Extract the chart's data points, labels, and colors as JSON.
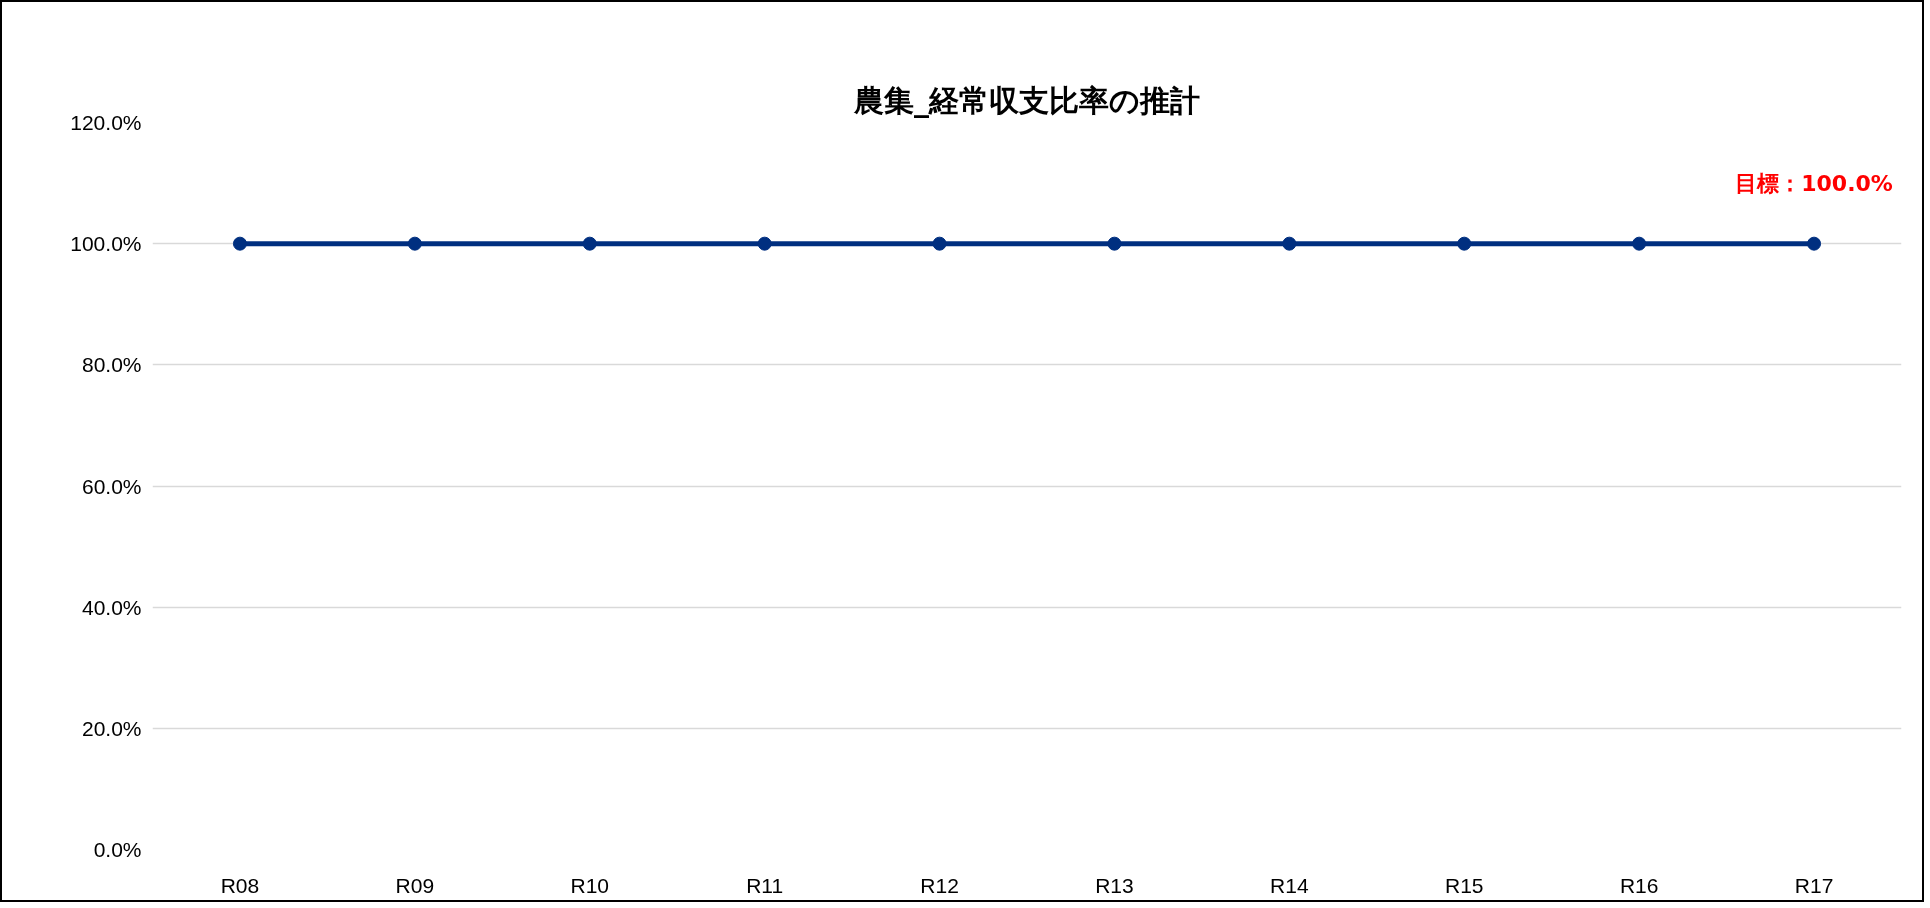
{
  "chart_data": {
    "type": "line",
    "title": "農集_経常収支比率の推計",
    "categories": [
      "R08",
      "R09",
      "R10",
      "R11",
      "R12",
      "R13",
      "R14",
      "R15",
      "R16",
      "R17"
    ],
    "series": [
      {
        "color": "#002f80",
        "values": [
          100,
          100,
          100,
          100,
          100,
          100,
          100,
          100,
          100,
          100
        ]
      }
    ],
    "ylim": [
      0,
      120
    ],
    "yticks": [
      {
        "value": 0,
        "label": "0.0%"
      },
      {
        "value": 20,
        "label": "20.0%"
      },
      {
        "value": 40,
        "label": "40.0%"
      },
      {
        "value": 60,
        "label": "60.0%"
      },
      {
        "value": 80,
        "label": "80.0%"
      },
      {
        "value": 100,
        "label": "100.0%"
      },
      {
        "value": 120,
        "label": "120.0%"
      }
    ],
    "grid": "y",
    "marker": "circle",
    "line_style": "solid",
    "annotations": [
      {
        "text": "目標：100.0%",
        "x": "R17",
        "y": 100
      }
    ]
  }
}
